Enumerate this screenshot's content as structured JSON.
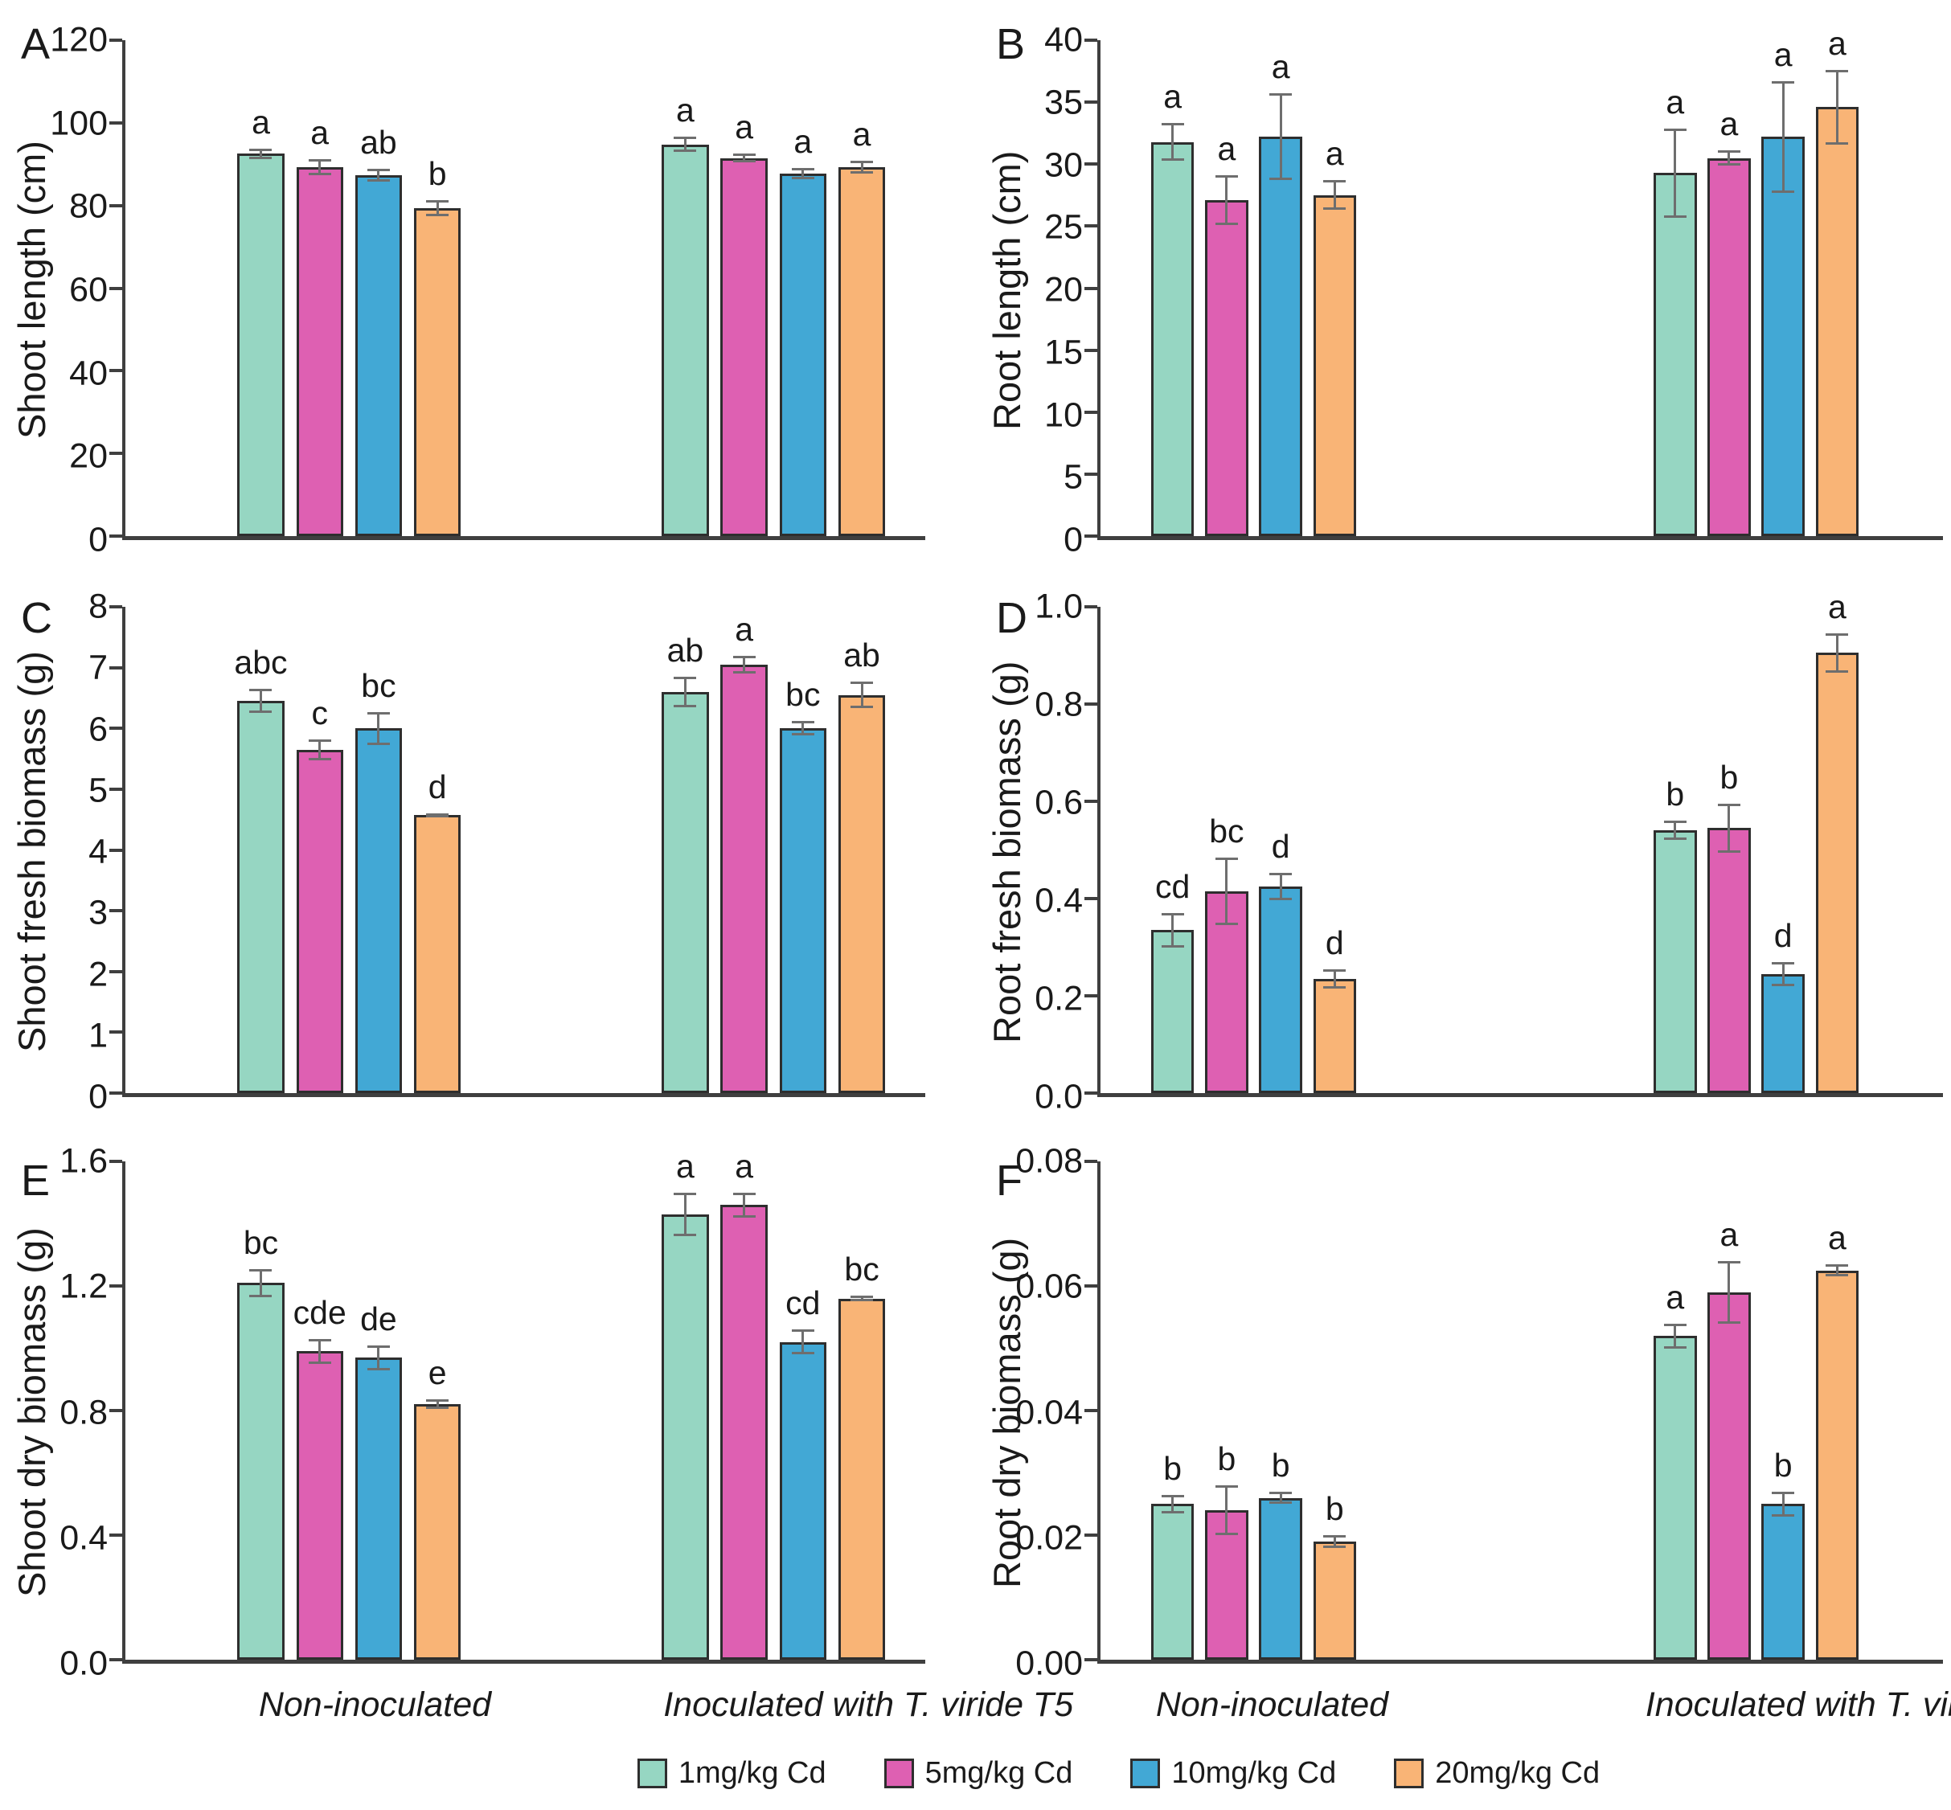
{
  "legend": {
    "items": [
      {
        "label": "1mg/kg Cd",
        "color": "#96D6C2"
      },
      {
        "label": "5mg/kg Cd",
        "color": "#DE60B2"
      },
      {
        "label": "10mg/kg Cd",
        "color": "#42A8D5"
      },
      {
        "label": "20mg/kg Cd",
        "color": "#F9B476"
      }
    ]
  },
  "colors": {
    "axis": "#3f3f3f",
    "bar_border": "#2e2e2e",
    "error_bar": "#6e6e6e",
    "text": "#1a1a1a"
  },
  "chart_data": [
    {
      "type": "bar",
      "panel": "A",
      "ylabel": "Shoot length (cm)",
      "ylim": [
        0,
        120
      ],
      "yticks": [
        "0",
        "20",
        "40",
        "60",
        "80",
        "100",
        "120"
      ],
      "categories": [
        "Non-inoculated",
        "Inoculated with T. viride T5"
      ],
      "show_xlabels": false,
      "grid": false,
      "series": [
        {
          "name": "1mg/kg Cd",
          "values": [
            92.5,
            94.8
          ],
          "errors": [
            1.3,
            1.8
          ],
          "letters": [
            "a",
            "a"
          ]
        },
        {
          "name": "5mg/kg Cd",
          "values": [
            89.3,
            91.5
          ],
          "errors": [
            1.9,
            1.0
          ],
          "letters": [
            "a",
            "a"
          ]
        },
        {
          "name": "10mg/kg Cd",
          "values": [
            87.3,
            87.7
          ],
          "errors": [
            1.6,
            1.4
          ],
          "letters": [
            "ab",
            "a"
          ]
        },
        {
          "name": "20mg/kg Cd",
          "values": [
            79.4,
            89.3
          ],
          "errors": [
            1.9,
            1.5
          ],
          "letters": [
            "b",
            "a"
          ]
        }
      ]
    },
    {
      "type": "bar",
      "panel": "B",
      "ylabel": "Root length (cm)",
      "ylim": [
        0,
        40
      ],
      "yticks": [
        "0",
        "5",
        "10",
        "15",
        "20",
        "25",
        "30",
        "35",
        "40"
      ],
      "categories": [
        "Non-inoculated",
        "Inoculated with T. viride T5"
      ],
      "show_xlabels": false,
      "grid": false,
      "series": [
        {
          "name": "1mg/kg Cd",
          "values": [
            31.8,
            29.3
          ],
          "errors": [
            1.5,
            3.6
          ],
          "letters": [
            "a",
            "a"
          ]
        },
        {
          "name": "5mg/kg Cd",
          "values": [
            27.1,
            30.5
          ],
          "errors": [
            2.0,
            0.6
          ],
          "letters": [
            "a",
            "a"
          ]
        },
        {
          "name": "10mg/kg Cd",
          "values": [
            32.2,
            32.2
          ],
          "errors": [
            3.5,
            4.5
          ],
          "letters": [
            "a",
            "a"
          ]
        },
        {
          "name": "20mg/kg Cd",
          "values": [
            27.5,
            34.6
          ],
          "errors": [
            1.2,
            3.0
          ],
          "letters": [
            "a",
            "a"
          ]
        }
      ]
    },
    {
      "type": "bar",
      "panel": "C",
      "ylabel": "Shoot fresh biomass (g)",
      "ylim": [
        0,
        8
      ],
      "yticks": [
        "0",
        "1",
        "2",
        "3",
        "4",
        "5",
        "6",
        "7",
        "8"
      ],
      "categories": [
        "Non-inoculated",
        "Inoculated with T. viride T5"
      ],
      "show_xlabels": false,
      "grid": false,
      "series": [
        {
          "name": "1mg/kg Cd",
          "values": [
            6.45,
            6.6
          ],
          "errors": [
            0.2,
            0.25
          ],
          "letters": [
            "abc",
            "ab"
          ]
        },
        {
          "name": "5mg/kg Cd",
          "values": [
            5.65,
            7.05
          ],
          "errors": [
            0.17,
            0.15
          ],
          "letters": [
            "c",
            "a"
          ]
        },
        {
          "name": "10mg/kg Cd",
          "values": [
            6.0,
            6.0
          ],
          "errors": [
            0.27,
            0.12
          ],
          "letters": [
            "bc",
            "bc"
          ]
        },
        {
          "name": "20mg/kg Cd",
          "values": [
            4.57,
            6.55
          ],
          "errors": [
            0.03,
            0.22
          ],
          "letters": [
            "d",
            "ab"
          ]
        }
      ]
    },
    {
      "type": "bar",
      "panel": "D",
      "ylabel": "Root fresh biomass (g)",
      "ylim": [
        0,
        1.0
      ],
      "yticks": [
        "0.0",
        "0.2",
        "0.4",
        "0.6",
        "0.8",
        "1.0"
      ],
      "categories": [
        "Non-inoculated",
        "Inoculated with T. viride T5"
      ],
      "show_xlabels": false,
      "grid": false,
      "series": [
        {
          "name": "1mg/kg Cd",
          "values": [
            0.335,
            0.54
          ],
          "errors": [
            0.035,
            0.02
          ],
          "letters": [
            "cd",
            "b"
          ]
        },
        {
          "name": "5mg/kg Cd",
          "values": [
            0.415,
            0.545
          ],
          "errors": [
            0.07,
            0.05
          ],
          "letters": [
            "bc",
            "b"
          ]
        },
        {
          "name": "10mg/kg Cd",
          "values": [
            0.425,
            0.245
          ],
          "errors": [
            0.028,
            0.025
          ],
          "letters": [
            "d",
            "d"
          ]
        },
        {
          "name": "20mg/kg Cd",
          "values": [
            0.235,
            0.905
          ],
          "errors": [
            0.02,
            0.04
          ],
          "letters": [
            "d",
            "a"
          ]
        }
      ]
    },
    {
      "type": "bar",
      "panel": "E",
      "ylabel": "Shoot dry biomass (g)",
      "ylim": [
        0,
        1.6
      ],
      "yticks": [
        "0.0",
        "0.4",
        "0.8",
        "1.2",
        "1.6"
      ],
      "categories": [
        "Non-inoculated",
        "Inoculated with T. viride T5"
      ],
      "show_xlabels": true,
      "grid": false,
      "series": [
        {
          "name": "1mg/kg Cd",
          "values": [
            1.21,
            1.43
          ],
          "errors": [
            0.045,
            0.07
          ],
          "letters": [
            "bc",
            "a"
          ]
        },
        {
          "name": "5mg/kg Cd",
          "values": [
            0.99,
            1.46
          ],
          "errors": [
            0.04,
            0.04
          ],
          "letters": [
            "cde",
            "a"
          ]
        },
        {
          "name": "10mg/kg Cd",
          "values": [
            0.97,
            1.02
          ],
          "errors": [
            0.04,
            0.04
          ],
          "letters": [
            "de",
            "cd"
          ]
        },
        {
          "name": "20mg/kg Cd",
          "values": [
            0.82,
            1.16
          ],
          "errors": [
            0.015,
            0.01
          ],
          "letters": [
            "e",
            "bc"
          ]
        }
      ]
    },
    {
      "type": "bar",
      "panel": "F",
      "ylabel": "Root dry biomass (g)",
      "ylim": [
        0,
        0.08
      ],
      "yticks": [
        "0.00",
        "0.02",
        "0.04",
        "0.06",
        "0.08"
      ],
      "categories": [
        "Non-inoculated",
        "Inoculated with T. viride T5"
      ],
      "show_xlabels": true,
      "grid": false,
      "series": [
        {
          "name": "1mg/kg Cd",
          "values": [
            0.025,
            0.052
          ],
          "errors": [
            0.0015,
            0.002
          ],
          "letters": [
            "b",
            "a"
          ]
        },
        {
          "name": "5mg/kg Cd",
          "values": [
            0.024,
            0.059
          ],
          "errors": [
            0.004,
            0.005
          ],
          "letters": [
            "b",
            "a"
          ]
        },
        {
          "name": "10mg/kg Cd",
          "values": [
            0.026,
            0.025
          ],
          "errors": [
            0.001,
            0.002
          ],
          "letters": [
            "b",
            "b"
          ]
        },
        {
          "name": "20mg/kg Cd",
          "values": [
            0.019,
            0.0625
          ],
          "errors": [
            0.001,
            0.001
          ],
          "letters": [
            "b",
            "a"
          ]
        }
      ]
    }
  ]
}
